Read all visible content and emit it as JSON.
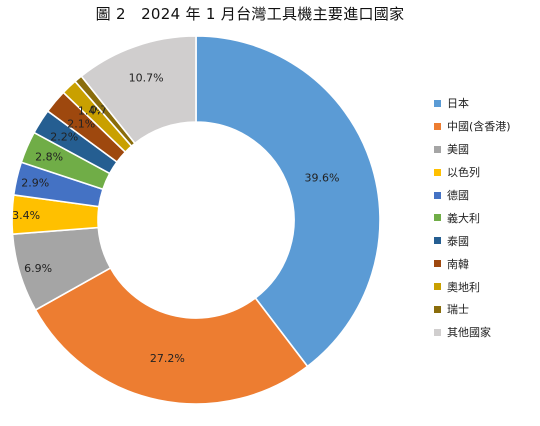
{
  "chart_data": {
    "type": "pie",
    "variant": "donut",
    "title": "圖 2　2024 年 1 月台灣工具機主要進口國家",
    "legend_position": "right",
    "slices": [
      {
        "label": "日本",
        "value": 39.6,
        "display": "39.6%",
        "color": "#5b9bd5"
      },
      {
        "label": "中國(含香港)",
        "value": 27.2,
        "display": "27.2%",
        "color": "#ed7d31"
      },
      {
        "label": "美國",
        "value": 6.9,
        "display": "6.9%",
        "color": "#a5a5a5"
      },
      {
        "label": "以色列",
        "value": 3.4,
        "display": "3.4%",
        "color": "#ffc000"
      },
      {
        "label": "德國",
        "value": 2.9,
        "display": "2.9%",
        "color": "#4472c4"
      },
      {
        "label": "義大利",
        "value": 2.8,
        "display": "2.8%",
        "color": "#70ad47"
      },
      {
        "label": "泰國",
        "value": 2.2,
        "display": "2.2%",
        "color": "#255e91"
      },
      {
        "label": "南韓",
        "value": 2.1,
        "display": "2.1%",
        "color": "#9e480e"
      },
      {
        "label": "奧地利",
        "value": 1.4,
        "display": "1.4%",
        "color": "#c9a000"
      },
      {
        "label": "瑞士",
        "value": 0.7,
        "display": "0.7%",
        "color": "#8a6d0b"
      },
      {
        "label": "其他國家",
        "value": 10.7,
        "display": "10.7%",
        "color": "#d0cece"
      }
    ]
  }
}
